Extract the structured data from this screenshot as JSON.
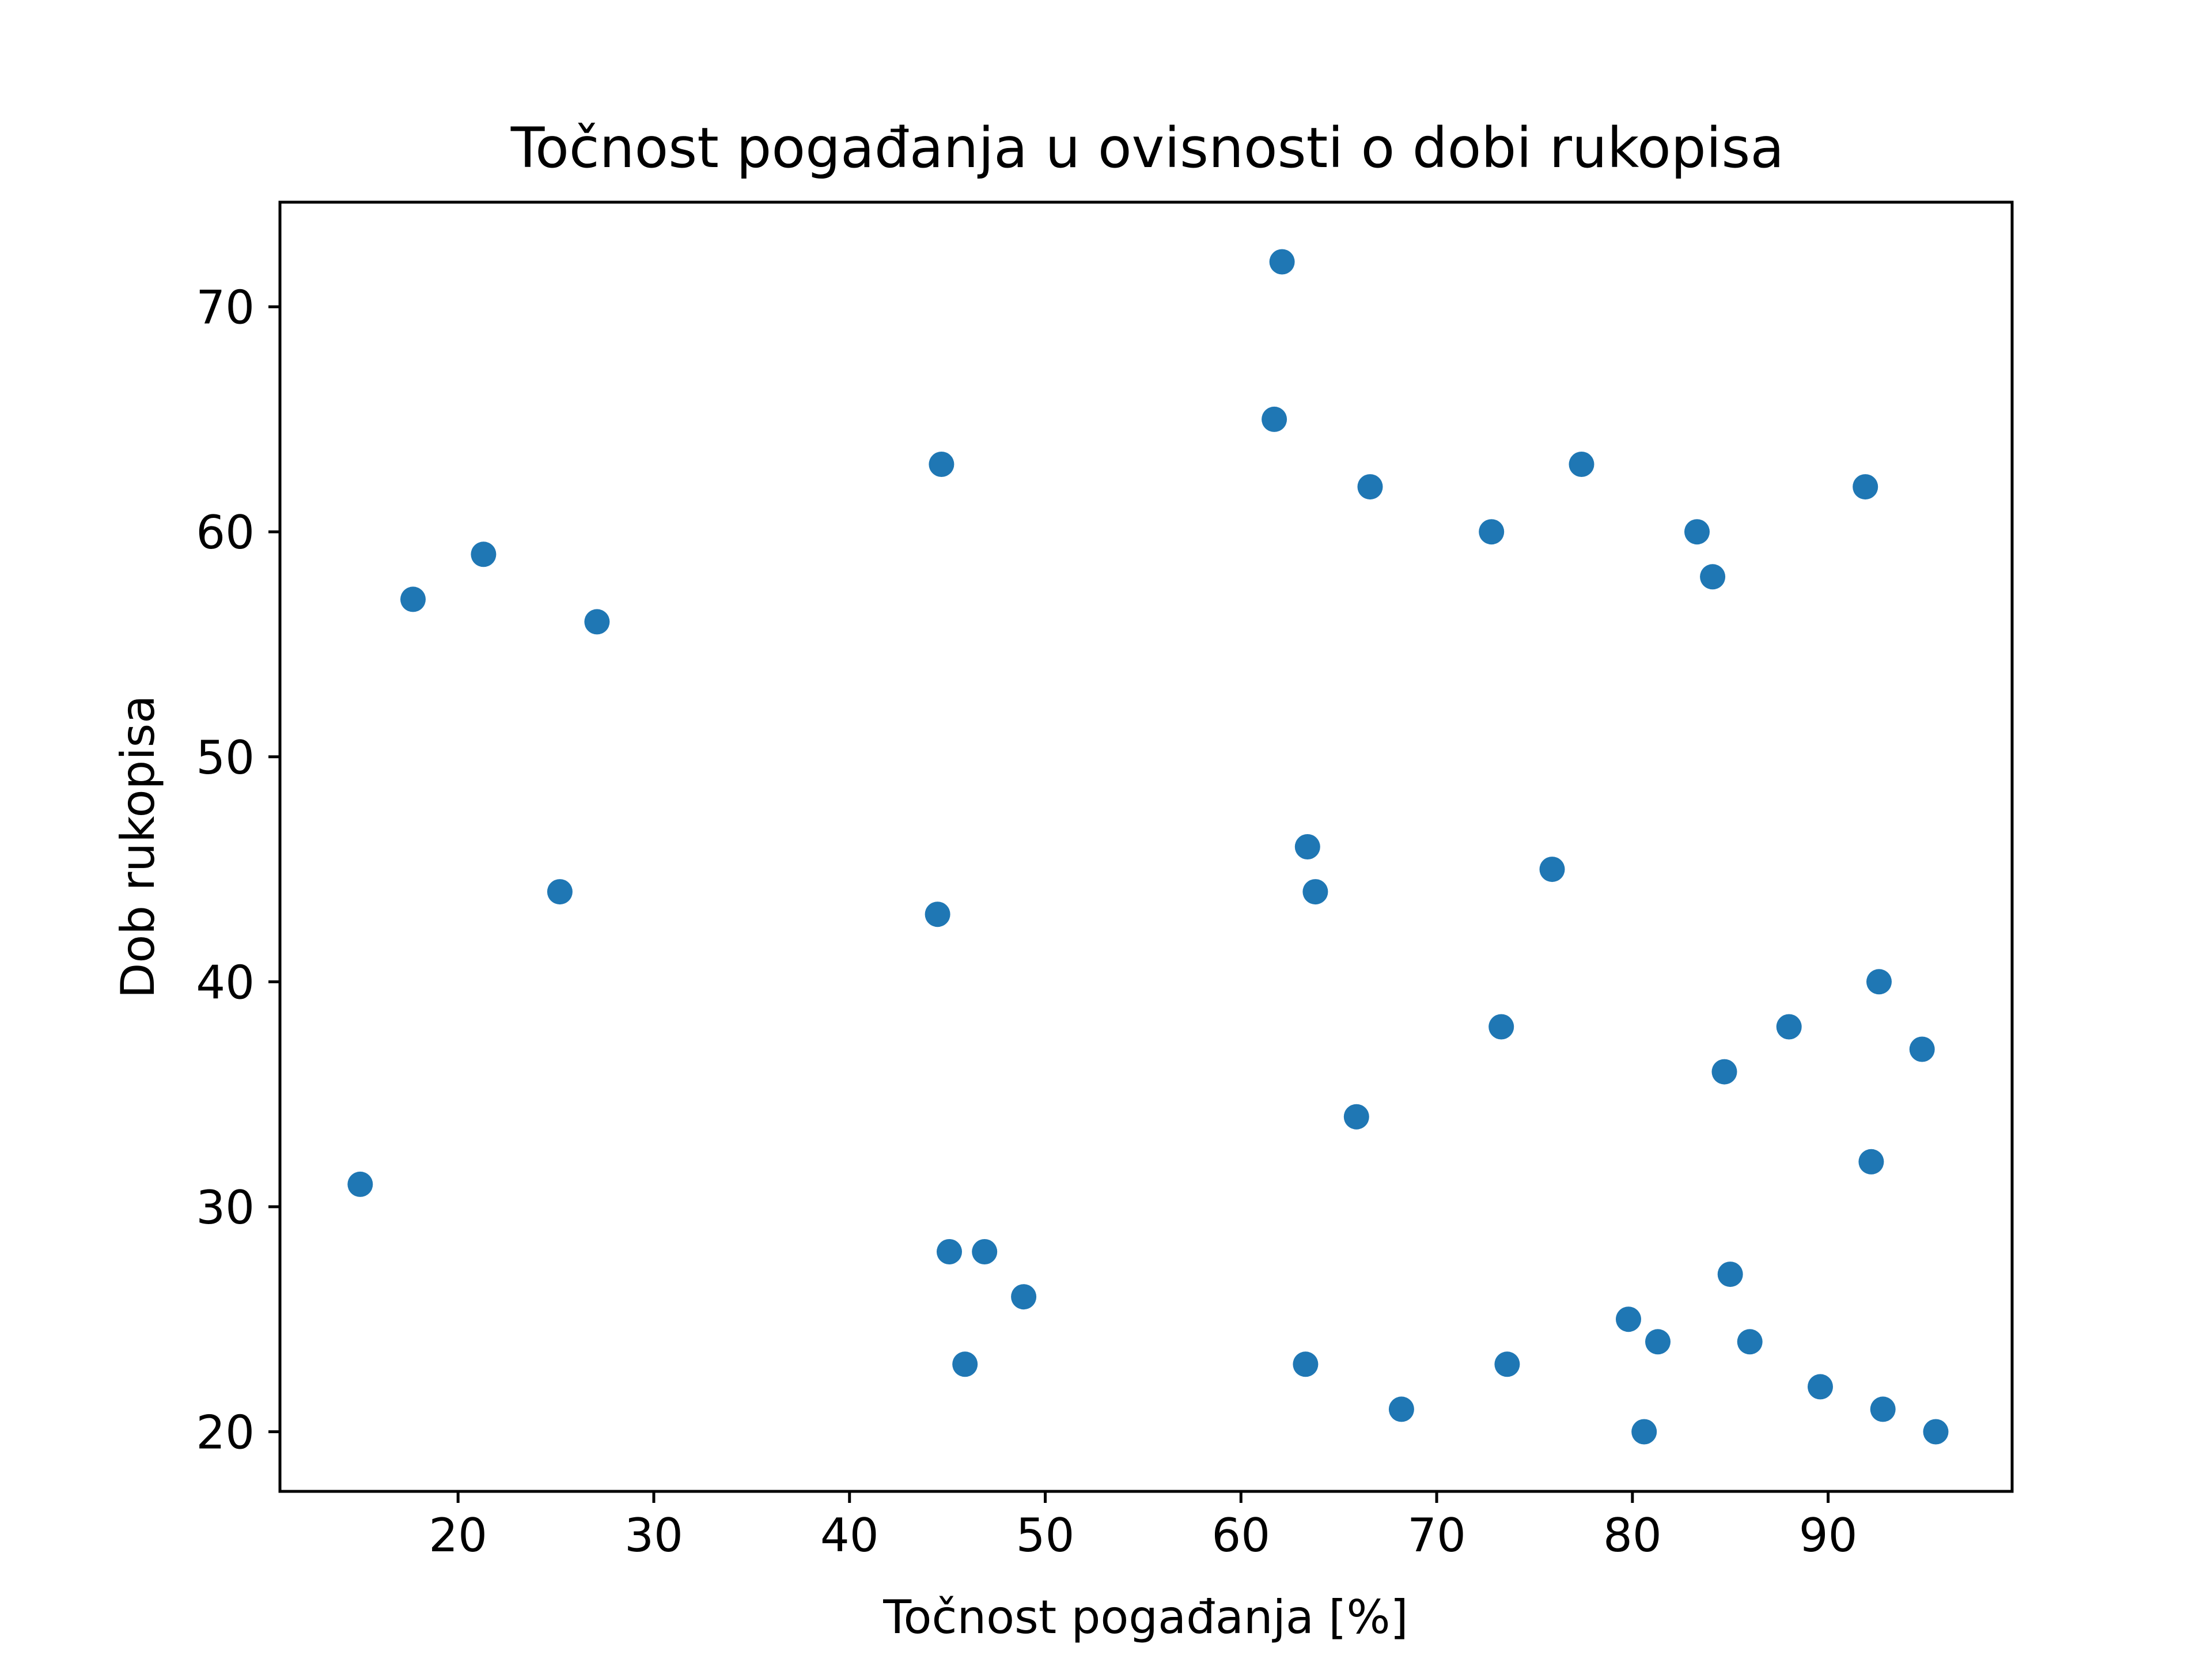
{
  "chart_data": {
    "type": "scatter",
    "title": "Točnost pogađanja u ovisnosti o dobi rukopisa",
    "xlabel": "Točnost pogađanja [%]",
    "ylabel": "Dob rukopisa",
    "xlim": [
      10.9,
      99.4
    ],
    "ylim": [
      17.35,
      74.65
    ],
    "xticks": [
      20,
      30,
      40,
      50,
      60,
      70,
      80,
      90
    ],
    "yticks": [
      20,
      30,
      40,
      50,
      60,
      70
    ],
    "grid": false,
    "marker_color": "#1f77b4",
    "points": [
      {
        "x": 62.1,
        "y": 72
      },
      {
        "x": 61.7,
        "y": 65
      },
      {
        "x": 44.7,
        "y": 63
      },
      {
        "x": 77.4,
        "y": 63
      },
      {
        "x": 66.6,
        "y": 62
      },
      {
        "x": 91.9,
        "y": 62
      },
      {
        "x": 72.8,
        "y": 60
      },
      {
        "x": 83.3,
        "y": 60
      },
      {
        "x": 21.3,
        "y": 59
      },
      {
        "x": 84.1,
        "y": 58
      },
      {
        "x": 17.7,
        "y": 57
      },
      {
        "x": 27.1,
        "y": 56
      },
      {
        "x": 63.4,
        "y": 46
      },
      {
        "x": 75.9,
        "y": 45
      },
      {
        "x": 25.2,
        "y": 44
      },
      {
        "x": 63.8,
        "y": 44
      },
      {
        "x": 44.5,
        "y": 43
      },
      {
        "x": 92.6,
        "y": 40
      },
      {
        "x": 73.3,
        "y": 38
      },
      {
        "x": 88.0,
        "y": 38
      },
      {
        "x": 94.8,
        "y": 37
      },
      {
        "x": 84.7,
        "y": 36
      },
      {
        "x": 65.9,
        "y": 34
      },
      {
        "x": 92.2,
        "y": 32
      },
      {
        "x": 15.0,
        "y": 31
      },
      {
        "x": 45.1,
        "y": 28
      },
      {
        "x": 46.9,
        "y": 28
      },
      {
        "x": 85.0,
        "y": 27
      },
      {
        "x": 48.9,
        "y": 26
      },
      {
        "x": 79.8,
        "y": 25
      },
      {
        "x": 81.3,
        "y": 24
      },
      {
        "x": 86.0,
        "y": 24
      },
      {
        "x": 45.9,
        "y": 23
      },
      {
        "x": 63.3,
        "y": 23
      },
      {
        "x": 73.6,
        "y": 23
      },
      {
        "x": 89.6,
        "y": 22
      },
      {
        "x": 68.2,
        "y": 21
      },
      {
        "x": 92.8,
        "y": 21
      },
      {
        "x": 80.6,
        "y": 20
      },
      {
        "x": 95.5,
        "y": 20
      }
    ]
  }
}
